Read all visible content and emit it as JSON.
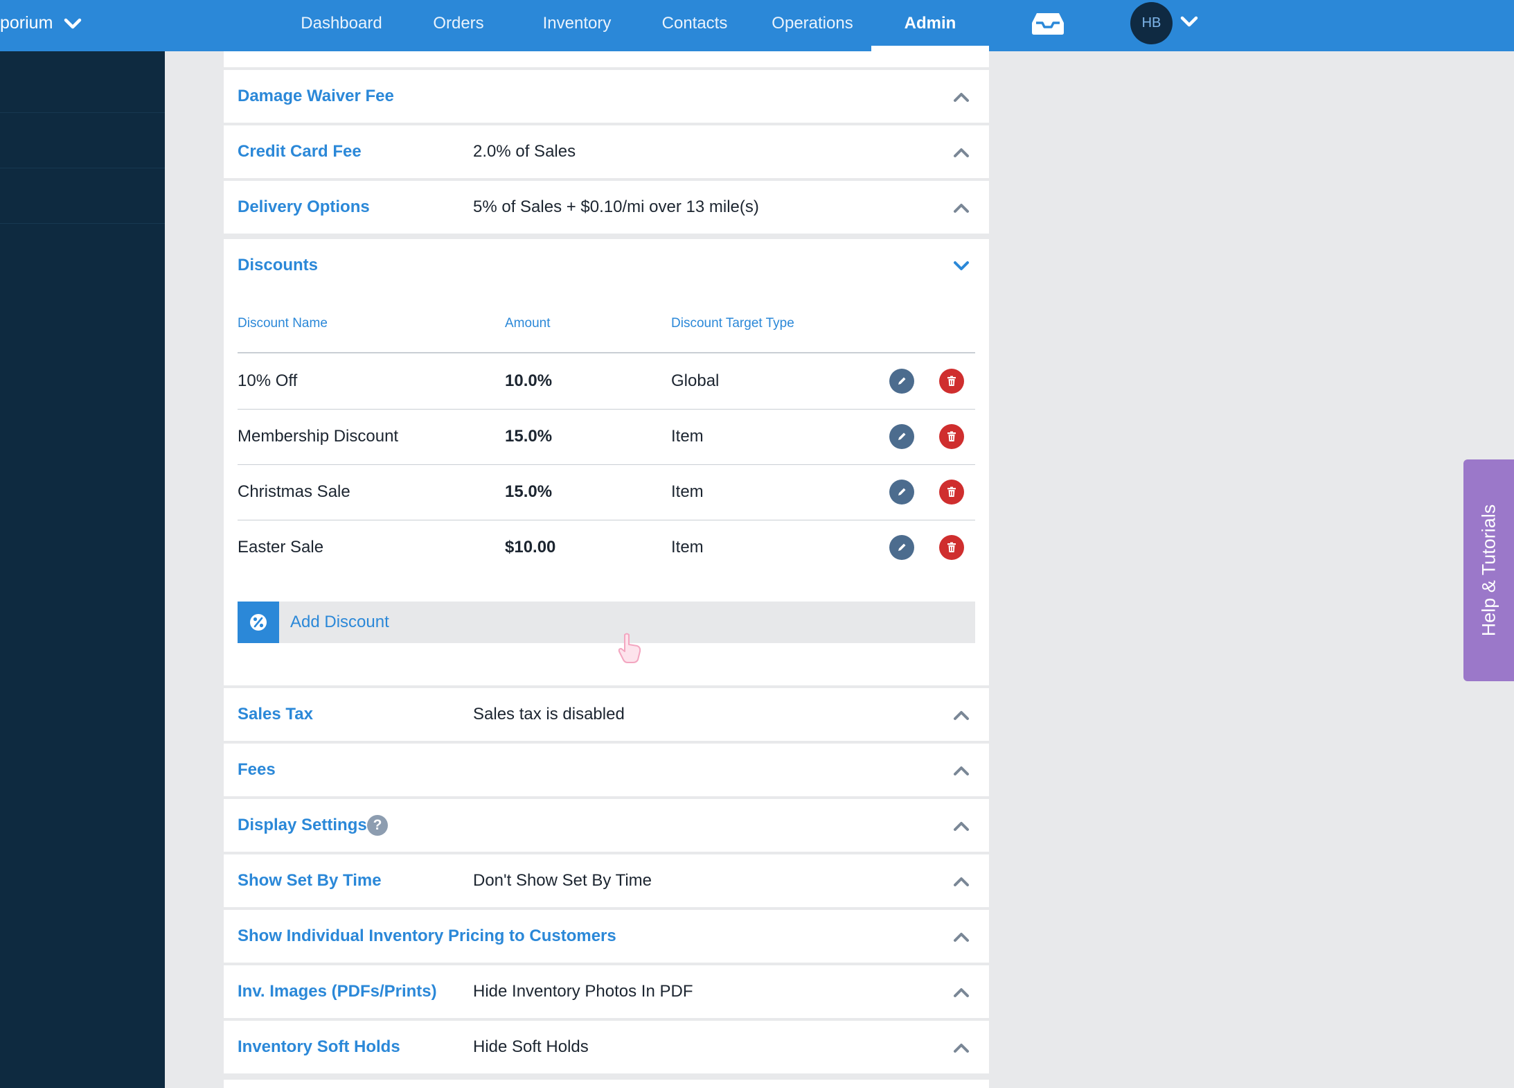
{
  "header": {
    "brand": "porium",
    "nav": [
      "Dashboard",
      "Orders",
      "Inventory",
      "Contacts",
      "Operations",
      "Admin"
    ],
    "active_nav": "Admin",
    "avatar_initials": "HB",
    "icons": [
      "chevron-down-icon",
      "inbox-icon"
    ]
  },
  "sections": {
    "damage_waiver": {
      "title": "Damage Waiver Fee",
      "value": ""
    },
    "credit_card": {
      "title": "Credit Card Fee",
      "value": "2.0% of Sales"
    },
    "delivery": {
      "title": "Delivery Options",
      "value": "5% of Sales + $0.10/mi over 13 mile(s)"
    },
    "sales_tax": {
      "title": "Sales Tax",
      "value": "Sales tax is disabled"
    },
    "fees": {
      "title": "Fees",
      "value": ""
    },
    "display": {
      "title": "Display Settings",
      "help": "?"
    },
    "set_by_time": {
      "title": "Show Set By Time",
      "value": "Don't Show Set By Time"
    },
    "individual_pricing": {
      "title": "Show Individual Inventory Pricing to Customers",
      "value": ""
    },
    "inv_images": {
      "title": "Inv. Images (PDFs/Prints)",
      "value": "Hide Inventory Photos In PDF"
    },
    "soft_holds": {
      "title": "Inventory Soft Holds",
      "value": "Hide Soft Holds"
    }
  },
  "discounts": {
    "title": "Discounts",
    "columns": {
      "name": "Discount Name",
      "amount": "Amount",
      "target": "Discount Target Type"
    },
    "rows": [
      {
        "name": "10% Off",
        "amount": "10.0%",
        "target": "Global"
      },
      {
        "name": "Membership Discount",
        "amount": "15.0%",
        "target": "Item"
      },
      {
        "name": "Christmas Sale",
        "amount": "15.0%",
        "target": "Item"
      },
      {
        "name": "Easter Sale",
        "amount": "$10.00",
        "target": "Item"
      }
    ],
    "add_label": "Add Discount"
  },
  "help_tab": "Help & Tutorials",
  "colors": {
    "topbar": "#2b88d8",
    "sidebar": "#0e2a40",
    "accent": "#2b88d8",
    "edit": "#4c6c8e",
    "delete": "#cf2e2e",
    "help_tab": "#9b78c9"
  }
}
